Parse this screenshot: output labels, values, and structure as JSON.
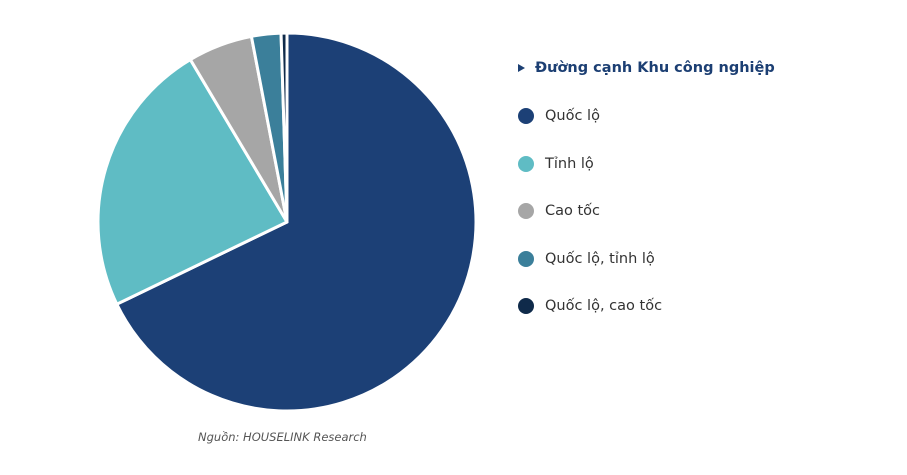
{
  "chart_data": {
    "type": "pie",
    "title": "",
    "legend_title": "Đường cạnh Khu công nghiệp",
    "legend_placement": "right",
    "slices": [
      {
        "label": "Quốc lộ",
        "value": 67.5,
        "color": "#1c4076"
      },
      {
        "label": "Tỉnh lộ",
        "value": 23.5,
        "color": "#5fbcc4"
      },
      {
        "label": "Cao tốc",
        "value": 5.5,
        "color": "#a6a6a6"
      },
      {
        "label": "Quốc lộ, tỉnh lộ",
        "value": 2.5,
        "color": "#3b7f9a"
      },
      {
        "label": "Quốc lộ, cao tốc",
        "value": 0.5,
        "color": "#0f2a4a"
      }
    ]
  },
  "source": "Nguồn: HOUSELINK Research"
}
